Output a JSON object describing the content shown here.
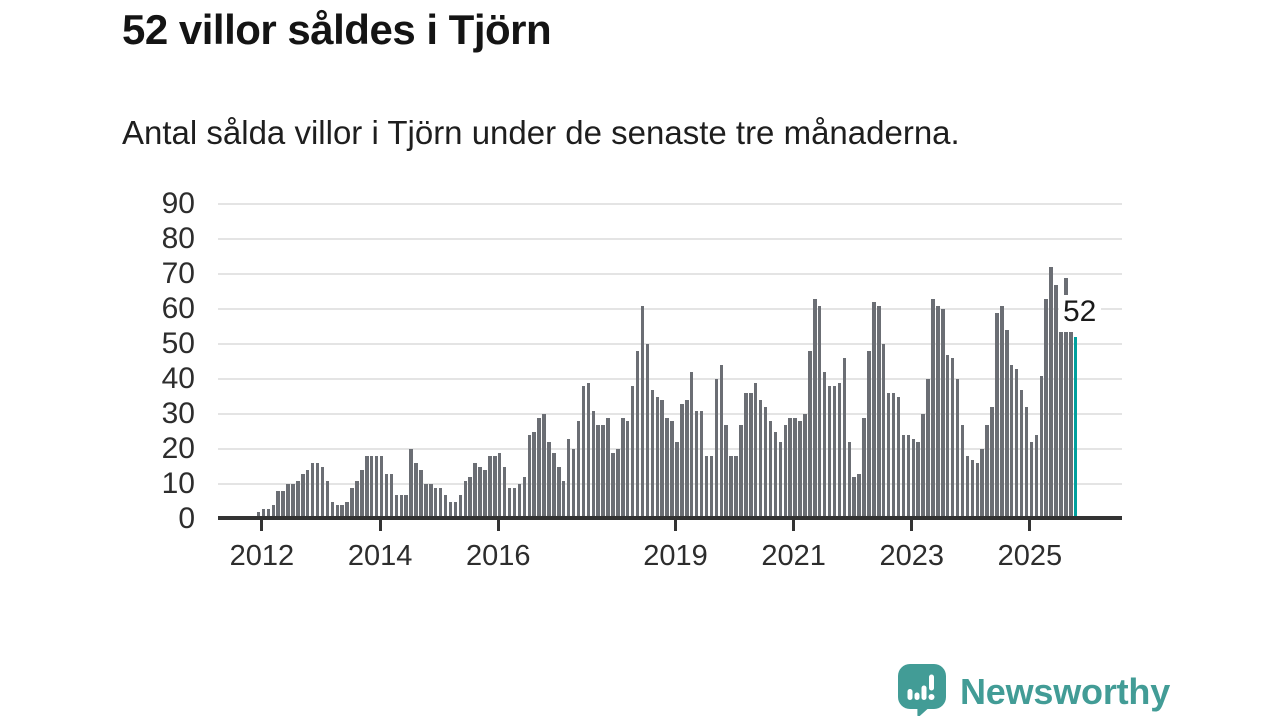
{
  "title": "52 villor såldes i Tjörn",
  "subtitle": "Antal sålda villor i Tjörn under de senaste tre månaderna.",
  "annotation": {
    "label": "52"
  },
  "branding": {
    "name": "Newsworthy",
    "icon": "newsworthy-bar-chart-bubble-icon"
  },
  "colors": {
    "accent_teal": "#00a09d",
    "bar_gray": "#6b6e74",
    "gridline": "#e4e4e4",
    "axis": "#333333",
    "logo_teal": "#429c96",
    "text_dark": "#141414"
  },
  "chart_data": {
    "type": "bar",
    "title": "52 villor såldes i Tjörn",
    "subtitle": "Antal sålda villor i Tjörn under de senaste tre månaderna.",
    "ylabel": "",
    "xlabel": "",
    "ylim": [
      0,
      90
    ],
    "y_ticks": [
      0,
      10,
      20,
      30,
      40,
      50,
      60,
      70,
      80,
      90
    ],
    "grid": "horizontal",
    "legend": "none",
    "x_tick_labels": [
      "2012",
      "2014",
      "2016",
      "2019",
      "2021",
      "2023",
      "2025"
    ],
    "x_tick_month_indices": [
      0.7,
      24.7,
      48.7,
      84.7,
      108.7,
      132.7,
      156.7
    ],
    "values": [
      2,
      3,
      3,
      4,
      8,
      8,
      10,
      10,
      11,
      13,
      14,
      16,
      16,
      15,
      11,
      5,
      4,
      4,
      5,
      9,
      11,
      14,
      18,
      18,
      18,
      18,
      13,
      13,
      7,
      7,
      7,
      20,
      16,
      14,
      10,
      10,
      9,
      9,
      7,
      5,
      5,
      7,
      11,
      12,
      16,
      15,
      14,
      18,
      18,
      19,
      15,
      9,
      9,
      10,
      12,
      24,
      25,
      29,
      30,
      22,
      19,
      15,
      11,
      23,
      20,
      28,
      38,
      39,
      31,
      27,
      27,
      29,
      19,
      20,
      29,
      28,
      38,
      48,
      61,
      50,
      37,
      35,
      34,
      29,
      28,
      22,
      33,
      34,
      42,
      31,
      31,
      18,
      18,
      40,
      44,
      27,
      18,
      18,
      27,
      36,
      36,
      39,
      34,
      32,
      28,
      25,
      22,
      27,
      29,
      29,
      28,
      30,
      48,
      63,
      61,
      42,
      38,
      38,
      39,
      46,
      22,
      12,
      13,
      29,
      48,
      62,
      61,
      50,
      36,
      36,
      35,
      24,
      24,
      23,
      22,
      30,
      40,
      63,
      61,
      60,
      47,
      46,
      40,
      27,
      18,
      17,
      16,
      20,
      27,
      32,
      59,
      61,
      54,
      44,
      43,
      37,
      32,
      22,
      24,
      41,
      63,
      72,
      67,
      56,
      69,
      55,
      52
    ],
    "highlight": {
      "index": 166,
      "value": 52,
      "label": "52",
      "color": "#00a09d"
    }
  }
}
